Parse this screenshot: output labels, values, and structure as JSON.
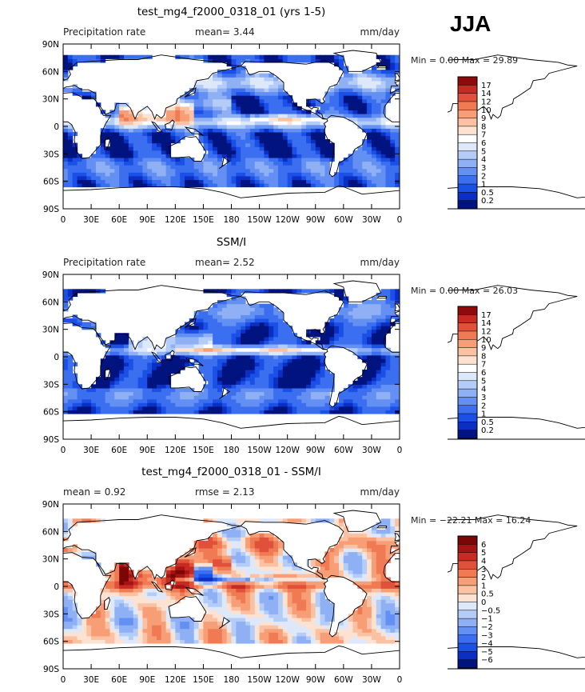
{
  "season": "JJA",
  "panels": [
    {
      "title": "test_mg4_f2000_0318_01 (yrs 1-5)",
      "left_label": "Precipitation rate",
      "center_label": "mean=    3.44",
      "units": "mm/day",
      "minmax": "Min =    0.00 Max =   29.89",
      "colorbar_labels": [
        "17",
        "14",
        "12",
        "10",
        "9",
        "8",
        "7",
        "6",
        "5",
        "4",
        "3",
        "2",
        "1",
        "0.5",
        "0.2"
      ],
      "field_type": "model_precip"
    },
    {
      "title": "SSM/I",
      "left_label": "Precipitation rate",
      "center_label": "mean=    2.52",
      "units": "mm/day",
      "minmax": "Min =    0.00 Max =   26.03",
      "colorbar_labels": [
        "17",
        "14",
        "12",
        "10",
        "9",
        "8",
        "7",
        "6",
        "5",
        "4",
        "3",
        "2",
        "1",
        "0.5",
        "0.2"
      ],
      "field_type": "obs_precip"
    },
    {
      "title": "test_mg4_f2000_0318_01 - SSM/I",
      "left_label": "mean =    0.92",
      "center_label": "rmse =    2.13",
      "units": "mm/day",
      "minmax": "Min = −22.21 Max =   16.24",
      "colorbar_labels": [
        "6",
        "5",
        "4",
        "3",
        "2",
        "1",
        "0.5",
        "0",
        "−0.5",
        "−1",
        "−2",
        "−3",
        "−4",
        "−5",
        "−6"
      ],
      "field_type": "difference"
    }
  ],
  "lat_ticks": [
    "90N",
    "60N",
    "30N",
    "0",
    "30S",
    "60S",
    "90S"
  ],
  "lon_ticks": [
    "0",
    "30E",
    "60E",
    "90E",
    "120E",
    "150E",
    "180",
    "150W",
    "120W",
    "90W",
    "60W",
    "30W",
    "0"
  ],
  "colors": {
    "precip": [
      "#00137f",
      "#0a2fc2",
      "#1a50e5",
      "#3b6ff0",
      "#6390f2",
      "#8fb0f5",
      "#b4cdf8",
      "#dde8fb",
      "#ffffff",
      "#fde2d2",
      "#fbc1a3",
      "#f89e77",
      "#f07a53",
      "#e0503a",
      "#c52a23",
      "#8f0b0b"
    ],
    "diff": [
      "#00137f",
      "#0a2fc2",
      "#1a50e5",
      "#3b6ff0",
      "#6390f2",
      "#8fb0f5",
      "#b4cdf8",
      "#dde8fb",
      "#fde2d2",
      "#fbc1a3",
      "#f89e77",
      "#f07a53",
      "#e0503a",
      "#c52a23",
      "#a61313",
      "#7a0606"
    ]
  }
}
